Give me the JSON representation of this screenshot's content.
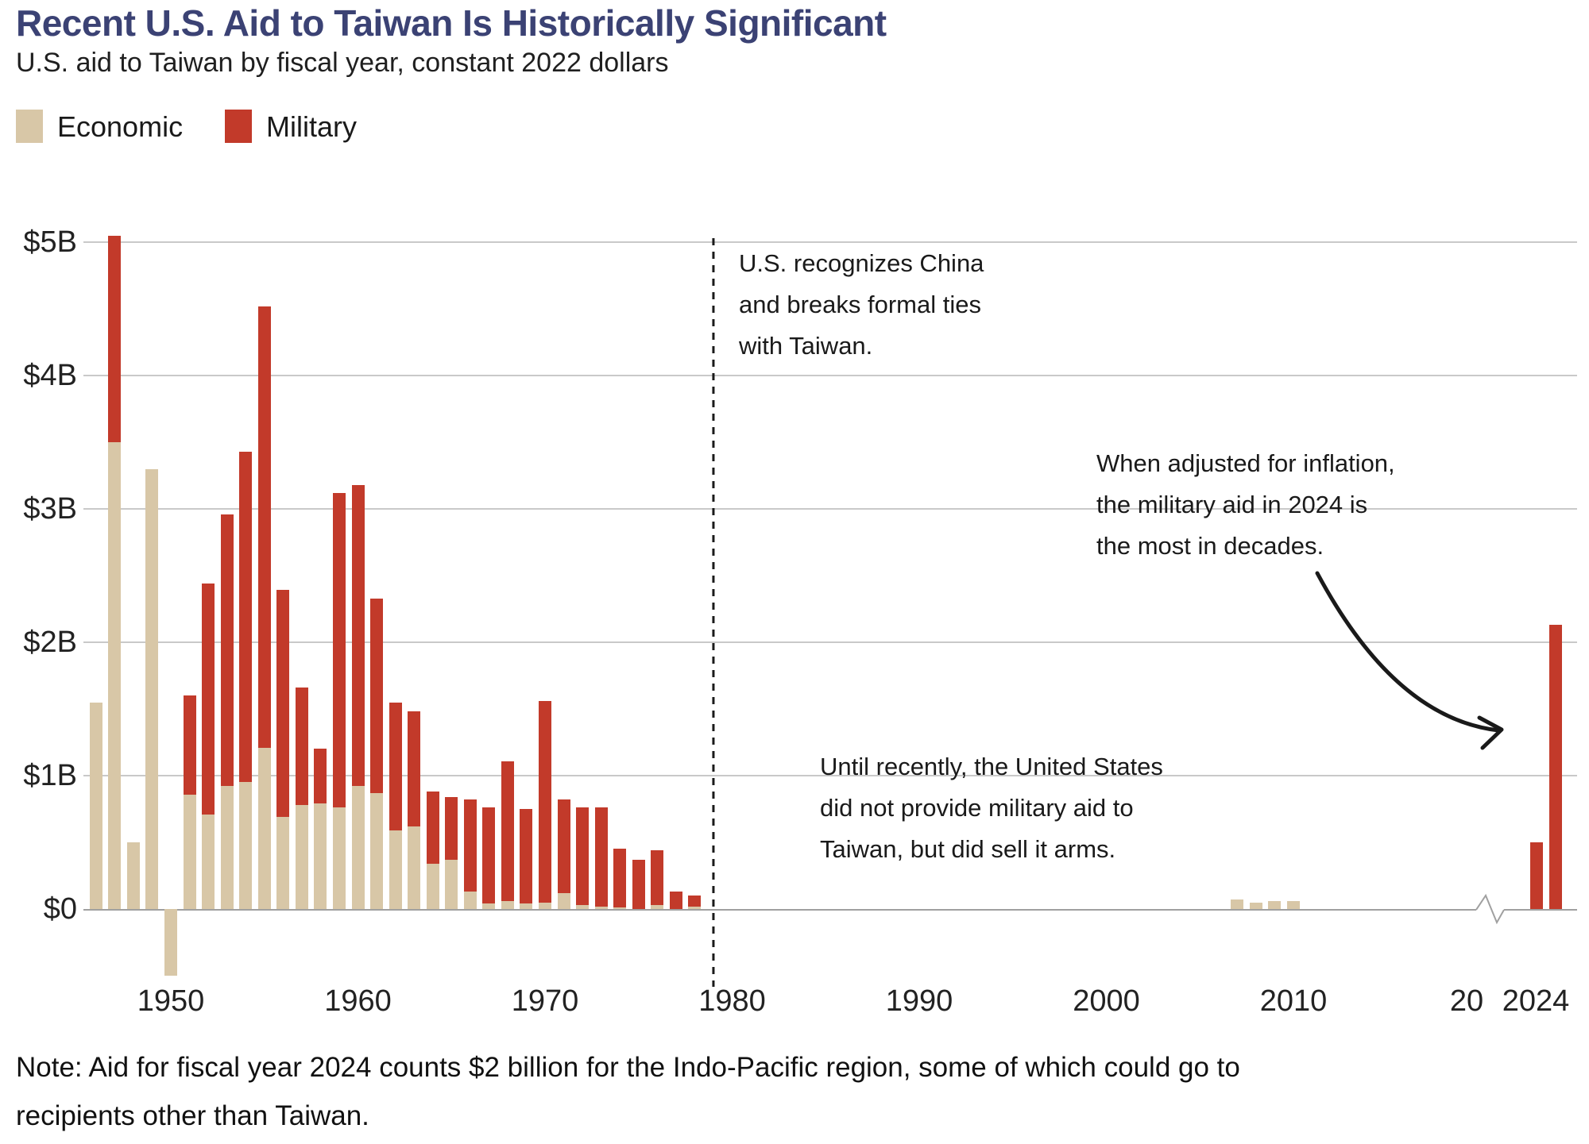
{
  "chart_data": {
    "type": "bar",
    "stacked": true,
    "title": "Recent U.S. Aid to Taiwan Is Historically Significant",
    "subtitle": "U.S. aid to Taiwan by fiscal year, constant 2022 dollars",
    "legend_position": "top-left",
    "grid": true,
    "ylim": [
      -0.6,
      5.2
    ],
    "series": [
      {
        "name": "Economic",
        "color": "#d8c7a7"
      },
      {
        "name": "Military",
        "color": "#c23a2a"
      }
    ],
    "bars": [
      {
        "year": 1946,
        "economic": 1.55,
        "military": 0
      },
      {
        "year": 1947,
        "economic": 3.5,
        "military": 1.55
      },
      {
        "year": 1948,
        "economic": 0.5,
        "military": 0
      },
      {
        "year": 1949,
        "economic": 3.3,
        "military": 0
      },
      {
        "year": 1950,
        "economic": -0.5,
        "military": 0
      },
      {
        "year": 1951,
        "economic": 0.86,
        "military": 0.74
      },
      {
        "year": 1952,
        "economic": 0.71,
        "military": 1.73
      },
      {
        "year": 1953,
        "economic": 0.92,
        "military": 2.04
      },
      {
        "year": 1954,
        "economic": 0.95,
        "military": 2.48
      },
      {
        "year": 1955,
        "economic": 1.21,
        "military": 3.31
      },
      {
        "year": 1956,
        "economic": 0.69,
        "military": 1.7
      },
      {
        "year": 1957,
        "economic": 0.78,
        "military": 0.88
      },
      {
        "year": 1958,
        "economic": 0.79,
        "military": 0.41
      },
      {
        "year": 1959,
        "economic": 0.76,
        "military": 2.36
      },
      {
        "year": 1960,
        "economic": 0.92,
        "military": 2.26
      },
      {
        "year": 1961,
        "economic": 0.87,
        "military": 1.46
      },
      {
        "year": 1962,
        "economic": 0.59,
        "military": 0.96
      },
      {
        "year": 1963,
        "economic": 0.62,
        "military": 0.86
      },
      {
        "year": 1964,
        "economic": 0.34,
        "military": 0.54
      },
      {
        "year": 1965,
        "economic": 0.37,
        "military": 0.47
      },
      {
        "year": 1966,
        "economic": 0.13,
        "military": 0.69
      },
      {
        "year": 1967,
        "economic": 0.04,
        "military": 0.72
      },
      {
        "year": 1968,
        "economic": 0.06,
        "military": 1.05
      },
      {
        "year": 1969,
        "economic": 0.04,
        "military": 0.71
      },
      {
        "year": 1970,
        "economic": 0.05,
        "military": 1.51
      },
      {
        "year": 1971,
        "economic": 0.12,
        "military": 0.7
      },
      {
        "year": 1972,
        "economic": 0.03,
        "military": 0.73
      },
      {
        "year": 1973,
        "economic": 0.02,
        "military": 0.74
      },
      {
        "year": 1974,
        "economic": 0.01,
        "military": 0.44
      },
      {
        "year": 1975,
        "economic": 0.0,
        "military": 0.37
      },
      {
        "year": 1976,
        "economic": 0.03,
        "military": 0.41
      },
      {
        "year": 1977,
        "economic": 0.0,
        "military": 0.13
      },
      {
        "year": 1978,
        "economic": 0.02,
        "military": 0.08
      },
      {
        "year": 2007,
        "economic": 0.07,
        "military": 0
      },
      {
        "year": 2008,
        "economic": 0.05,
        "military": 0
      },
      {
        "year": 2009,
        "economic": 0.06,
        "military": 0
      },
      {
        "year": 2010,
        "economic": 0.06,
        "military": 0
      },
      {
        "year": 2023,
        "economic": 0.0,
        "military": 0.5
      },
      {
        "year": 2024,
        "economic": 0.0,
        "military": 2.13
      }
    ],
    "y_ticks": [
      {
        "label": "$0",
        "value": 0
      },
      {
        "label": "$1B",
        "value": 1
      },
      {
        "label": "$2B",
        "value": 2
      },
      {
        "label": "$3B",
        "value": 3
      },
      {
        "label": "$4B",
        "value": 4
      },
      {
        "label": "$5B",
        "value": 5
      }
    ],
    "x_ticks": [
      {
        "label": "1950",
        "year": 1950
      },
      {
        "label": "1960",
        "year": 1960
      },
      {
        "label": "1970",
        "year": 1970
      },
      {
        "label": "1980",
        "year": 1980
      },
      {
        "label": "1990",
        "year": 1990
      },
      {
        "label": "2000",
        "year": 2000
      },
      {
        "label": "2010",
        "year": 2010
      },
      {
        "label": "20",
        "x": 1846
      },
      {
        "label": "2024",
        "x": 1933
      }
    ],
    "dashed_event_line_year": 1979,
    "axis_break_year": 2020.5
  },
  "annotations": {
    "recognition": {
      "lines": [
        "U.S. recognizes China",
        "and breaks formal ties",
        "with Taiwan."
      ]
    },
    "inflation": {
      "lines": [
        "When adjusted for inflation,",
        "the military aid in 2024 is",
        "the most in decades."
      ]
    },
    "until": {
      "lines": [
        "Until recently, the United States",
        "did not provide military aid to",
        "Taiwan, but did sell it arms."
      ]
    }
  },
  "note": {
    "lines": [
      "Note: Aid for fiscal year 2024 counts $2 billion for the Indo-Pacific region, some of which could go to",
      "recipients other than Taiwan."
    ]
  },
  "colors": {
    "title": "#3b4274",
    "economic": "#d8c7a7",
    "military": "#c23a2a",
    "gridline": "#c9c9c9",
    "axis": "#a0a0a0",
    "annotation_text": "#1a1a1a"
  }
}
